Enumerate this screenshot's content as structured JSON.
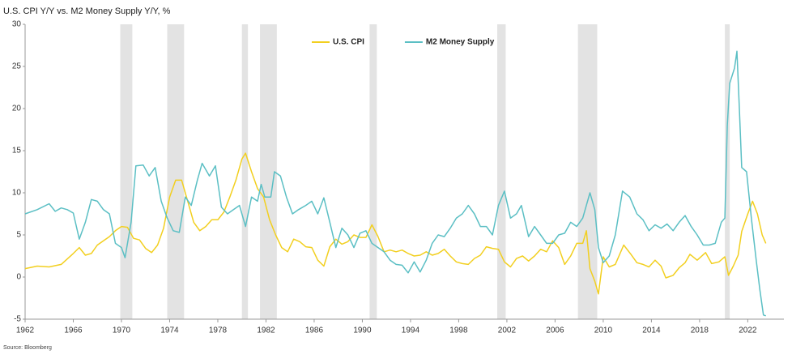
{
  "chart_data": {
    "type": "line",
    "title": "U.S. CPI Y/Y vs. M2 Money Supply Y/Y, %",
    "source": "Source: Bloomberg",
    "xlim": [
      1962,
      2025
    ],
    "ylim": [
      -5,
      30
    ],
    "xticks": [
      1962,
      1966,
      1970,
      1974,
      1978,
      1982,
      1986,
      1990,
      1994,
      1998,
      2002,
      2006,
      2010,
      2014,
      2018,
      2022
    ],
    "yticks": [
      -5,
      0,
      5,
      10,
      15,
      20,
      25,
      30
    ],
    "grid": false,
    "legend": "top",
    "shaded_color": "#e3e3e3",
    "shaded_periods": [
      [
        1969.9,
        1970.9
      ],
      [
        1973.8,
        1975.2
      ],
      [
        1980.0,
        1980.5
      ],
      [
        1981.5,
        1982.9
      ],
      [
        1990.6,
        1991.2
      ],
      [
        2001.2,
        2001.9
      ],
      [
        2007.9,
        2009.5
      ],
      [
        2020.1,
        2020.5
      ]
    ],
    "series": [
      {
        "name": "U.S. CPI",
        "color": "#f2cf1f",
        "x": [
          1962,
          1963,
          1964,
          1965,
          1966,
          1966.5,
          1967,
          1967.5,
          1968,
          1968.5,
          1969,
          1969.5,
          1970,
          1970.5,
          1971,
          1971.5,
          1972,
          1972.5,
          1973,
          1973.5,
          1974,
          1974.5,
          1975,
          1975.5,
          1976,
          1976.5,
          1977,
          1977.5,
          1978,
          1978.5,
          1979,
          1979.5,
          1980,
          1980.3,
          1980.8,
          1981.3,
          1981.8,
          1982.3,
          1982.8,
          1983.3,
          1983.8,
          1984.3,
          1984.8,
          1985.3,
          1985.8,
          1986.3,
          1986.8,
          1987.3,
          1987.8,
          1988.3,
          1988.8,
          1989.3,
          1989.8,
          1990.3,
          1990.8,
          1991.3,
          1991.8,
          1992.3,
          1992.8,
          1993.3,
          1993.8,
          1994.3,
          1994.8,
          1995.3,
          1995.8,
          1996.3,
          1996.8,
          1997.3,
          1997.8,
          1998.3,
          1998.8,
          1999.3,
          1999.8,
          2000.3,
          2000.8,
          2001.3,
          2001.8,
          2002.3,
          2002.8,
          2003.3,
          2003.8,
          2004.3,
          2004.8,
          2005.3,
          2005.8,
          2006.3,
          2006.8,
          2007.3,
          2007.8,
          2008.3,
          2008.6,
          2008.9,
          2009.3,
          2009.6,
          2010,
          2010.5,
          2011,
          2011.7,
          2012.3,
          2012.8,
          2013.3,
          2013.8,
          2014.3,
          2014.8,
          2015.2,
          2015.8,
          2016.3,
          2016.8,
          2017.2,
          2017.8,
          2018.5,
          2019,
          2019.6,
          2020.1,
          2020.4,
          2020.8,
          2021.2,
          2021.5,
          2022,
          2022.4,
          2022.8,
          2023.2,
          2023.5
        ],
        "values": [
          1.0,
          1.3,
          1.2,
          1.5,
          2.8,
          3.5,
          2.6,
          2.8,
          3.8,
          4.3,
          4.8,
          5.5,
          6.0,
          5.9,
          4.6,
          4.4,
          3.4,
          2.9,
          3.8,
          5.8,
          9.5,
          11.5,
          11.5,
          9.0,
          6.5,
          5.5,
          6.0,
          6.8,
          6.8,
          7.7,
          9.5,
          11.5,
          14.0,
          14.7,
          12.5,
          10.5,
          9.5,
          6.8,
          5.0,
          3.5,
          3.0,
          4.5,
          4.2,
          3.6,
          3.5,
          2.0,
          1.3,
          3.6,
          4.5,
          3.9,
          4.2,
          5.0,
          4.7,
          4.7,
          6.2,
          4.8,
          3.0,
          3.2,
          3.0,
          3.2,
          2.8,
          2.5,
          2.6,
          3.0,
          2.6,
          2.8,
          3.3,
          2.5,
          1.8,
          1.6,
          1.5,
          2.2,
          2.6,
          3.6,
          3.4,
          3.3,
          1.8,
          1.2,
          2.2,
          2.5,
          1.9,
          2.5,
          3.3,
          3.0,
          4.3,
          3.5,
          1.5,
          2.5,
          4.0,
          4.0,
          5.5,
          1.0,
          -0.5,
          -2.0,
          2.4,
          1.2,
          1.5,
          3.8,
          2.7,
          1.7,
          1.5,
          1.2,
          2.0,
          1.3,
          -0.1,
          0.2,
          1.1,
          1.7,
          2.7,
          2.0,
          2.9,
          1.6,
          1.8,
          2.4,
          0.2,
          1.3,
          2.6,
          5.4,
          7.5,
          9.0,
          7.5,
          5.0,
          4.0
        ]
      },
      {
        "name": "M2 Money Supply",
        "color": "#5bbfc4",
        "x": [
          1962,
          1963,
          1964,
          1964.5,
          1965,
          1965.5,
          1966,
          1966.5,
          1967,
          1967.5,
          1968,
          1968.5,
          1969,
          1969.5,
          1970,
          1970.3,
          1970.8,
          1971.2,
          1971.8,
          1972.3,
          1972.8,
          1973.3,
          1973.8,
          1974.3,
          1974.8,
          1975.3,
          1975.8,
          1976.3,
          1976.7,
          1977.3,
          1977.8,
          1978.3,
          1978.8,
          1979.3,
          1979.8,
          1980.3,
          1980.8,
          1981.3,
          1981.6,
          1981.9,
          1982.4,
          1982.7,
          1983.2,
          1983.7,
          1984.2,
          1984.7,
          1985.3,
          1985.8,
          1986.3,
          1986.8,
          1987.3,
          1987.8,
          1988.3,
          1988.8,
          1989.3,
          1989.8,
          1990.3,
          1990.8,
          1991.3,
          1991.8,
          1992.3,
          1992.8,
          1993.3,
          1993.8,
          1994.3,
          1994.8,
          1995.3,
          1995.8,
          1996.3,
          1996.8,
          1997.3,
          1997.8,
          1998.3,
          1998.8,
          1999.3,
          1999.8,
          2000.3,
          2000.8,
          2001.3,
          2001.8,
          2002.3,
          2002.8,
          2003.2,
          2003.8,
          2004.3,
          2004.8,
          2005.3,
          2005.8,
          2006.3,
          2006.8,
          2007.3,
          2007.8,
          2008.3,
          2008.9,
          2009.3,
          2009.6,
          2010,
          2010.5,
          2011,
          2011.6,
          2012.2,
          2012.8,
          2013.3,
          2013.8,
          2014.3,
          2014.8,
          2015.3,
          2015.8,
          2016.3,
          2016.8,
          2017.3,
          2017.8,
          2018.3,
          2018.8,
          2019.3,
          2019.8,
          2020.1,
          2020.3,
          2020.5,
          2020.9,
          2021.1,
          2021.3,
          2021.5,
          2021.9,
          2022.3,
          2022.7,
          2023.0,
          2023.3,
          2023.5
        ],
        "values": [
          7.5,
          8.0,
          8.7,
          7.8,
          8.2,
          8.0,
          7.6,
          4.5,
          6.5,
          9.2,
          9.0,
          8.0,
          7.5,
          4.0,
          3.5,
          2.3,
          6.5,
          13.2,
          13.3,
          12.0,
          13.0,
          9.0,
          7.0,
          5.5,
          5.3,
          9.5,
          8.5,
          11.5,
          13.5,
          12.0,
          13.2,
          8.3,
          7.5,
          8.0,
          8.5,
          6.0,
          9.5,
          9.0,
          11.0,
          9.5,
          9.5,
          12.5,
          12.0,
          9.5,
          7.5,
          8.0,
          8.5,
          9.0,
          7.5,
          9.4,
          6.5,
          3.5,
          5.8,
          5.0,
          3.5,
          5.2,
          5.5,
          4.0,
          3.5,
          3.0,
          2.0,
          1.5,
          1.4,
          0.5,
          1.8,
          0.6,
          2.0,
          4.0,
          5.0,
          4.8,
          5.8,
          7.0,
          7.5,
          8.5,
          7.5,
          6.0,
          6.0,
          5.0,
          8.5,
          10.2,
          7.0,
          7.5,
          8.5,
          4.8,
          6.0,
          5.0,
          4.0,
          4.0,
          5.0,
          5.2,
          6.5,
          6.0,
          7.0,
          10.0,
          8.0,
          3.5,
          1.7,
          2.5,
          5.0,
          10.2,
          9.5,
          7.5,
          6.8,
          5.5,
          6.2,
          5.8,
          6.3,
          5.5,
          6.5,
          7.3,
          6.0,
          5.0,
          3.8,
          3.8,
          4.0,
          6.5,
          7.0,
          18.0,
          23.0,
          24.8,
          26.8,
          20.0,
          13.0,
          12.5,
          7.0,
          2.0,
          -1.5,
          -4.5,
          -4.6
        ]
      }
    ]
  }
}
